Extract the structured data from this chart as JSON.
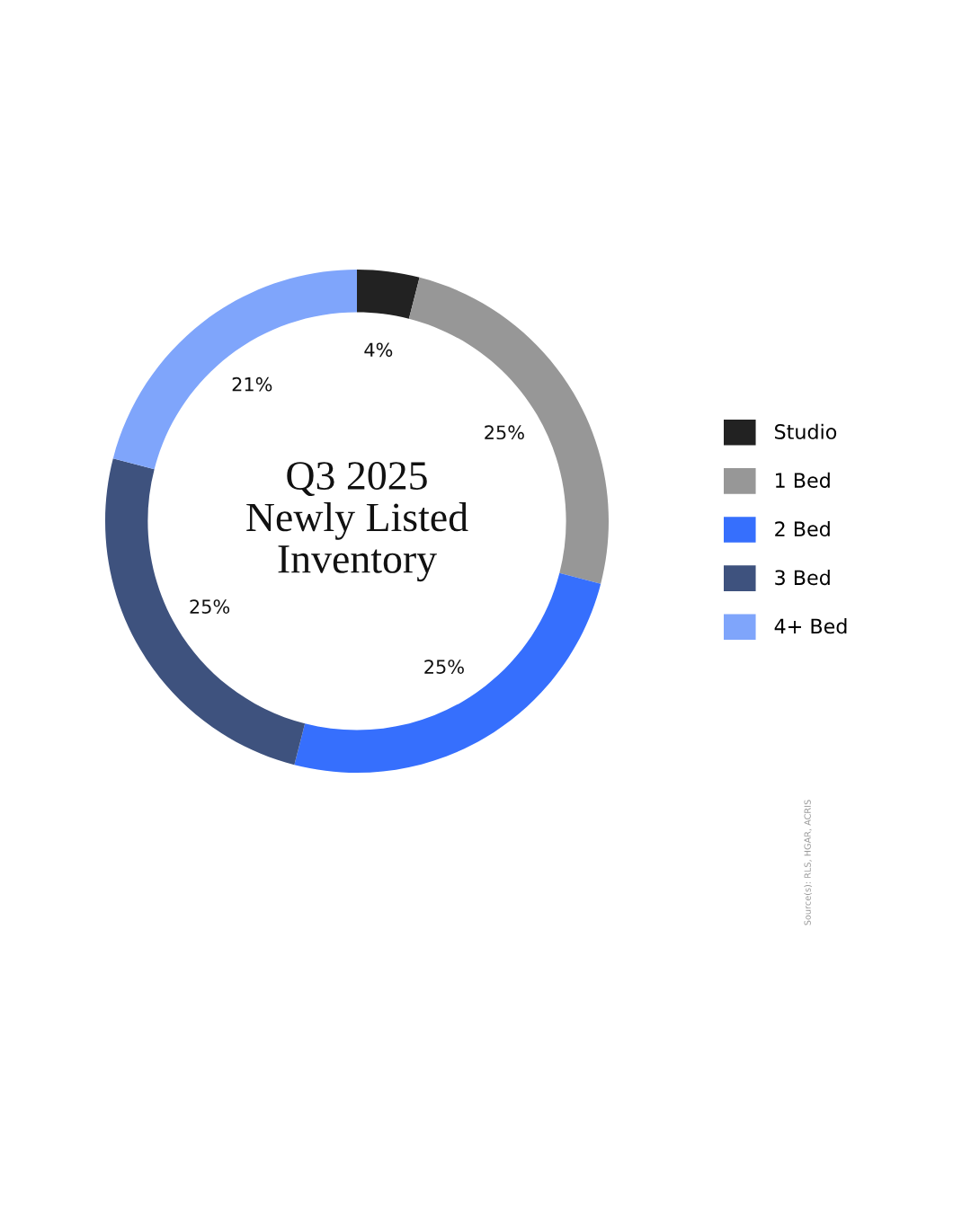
{
  "chart_data": {
    "type": "donut",
    "title": "Q3 2025\nNewly Listed\nInventory",
    "categories": [
      "Studio",
      "1 Bed",
      "2 Bed",
      "3 Bed",
      "4+ Bed"
    ],
    "values": [
      4,
      25,
      25,
      25,
      21
    ],
    "colors": [
      "#222222",
      "#979797",
      "#366ffd",
      "#3e527e",
      "#7fa5fb"
    ],
    "value_labels": [
      "4%",
      "25%",
      "25%",
      "25%",
      "21%"
    ],
    "legend": "right",
    "annotations": [
      "Source(s): RLS, HGAR, ACRIS"
    ]
  }
}
